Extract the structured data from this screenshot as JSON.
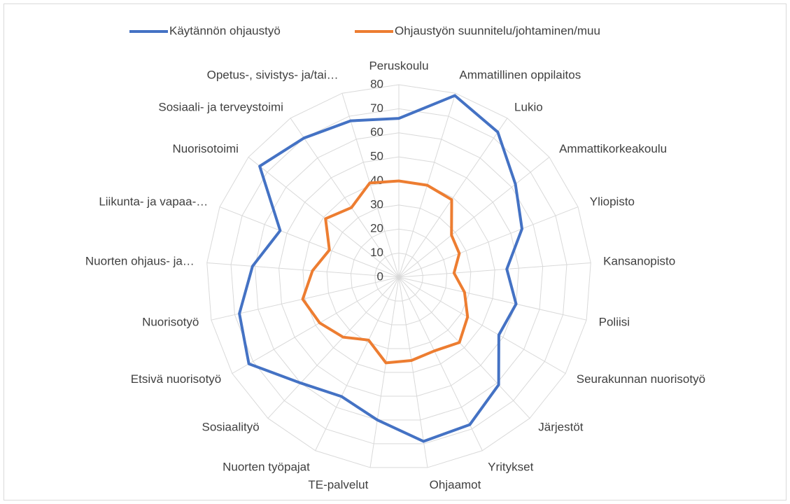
{
  "chart_data": {
    "type": "radar",
    "categories": [
      "Peruskoulu",
      "Ammatillinen oppilaitos",
      "Lukio",
      "Ammattikorkeakoulu",
      "Yliopisto",
      "Kansanopisto",
      "Poliisi",
      "Seurakunnan nuorisotyö",
      "Järjestöt",
      "Yritykset",
      "Ohjaamot",
      "TE-palvelut",
      "Nuorten työpajat",
      "Sosiaalityö",
      "Etsivä nuorisotyö",
      "Nuorisotyö",
      "Nuorten ohjaus- ja…",
      "Liikunta- ja vapaa-…",
      "Nuorisotoimi",
      "Sosiaali- ja terveystoimi",
      "Opetus-, sivistys- ja/tai…"
    ],
    "series": [
      {
        "name": "Käytännön ohjaustyö",
        "color": "#4472c4",
        "values": [
          66,
          79,
          73,
          62,
          55,
          45,
          50,
          48,
          61,
          68,
          69,
          60,
          55,
          60,
          72,
          68,
          61,
          53,
          74,
          70,
          68
        ]
      },
      {
        "name": "Ohjaustyön suunnitelu/johtaminen/muu",
        "color": "#ed7d31",
        "values": [
          40,
          40,
          39,
          28,
          27,
          23,
          28,
          33,
          37,
          34,
          35,
          36,
          29,
          34,
          38,
          41,
          36,
          31,
          39,
          35,
          41
        ]
      }
    ],
    "ylim": [
      0,
      80
    ],
    "yticks": [
      0,
      10,
      20,
      30,
      40,
      50,
      60,
      70,
      80
    ],
    "grid": true,
    "legend": "top"
  }
}
